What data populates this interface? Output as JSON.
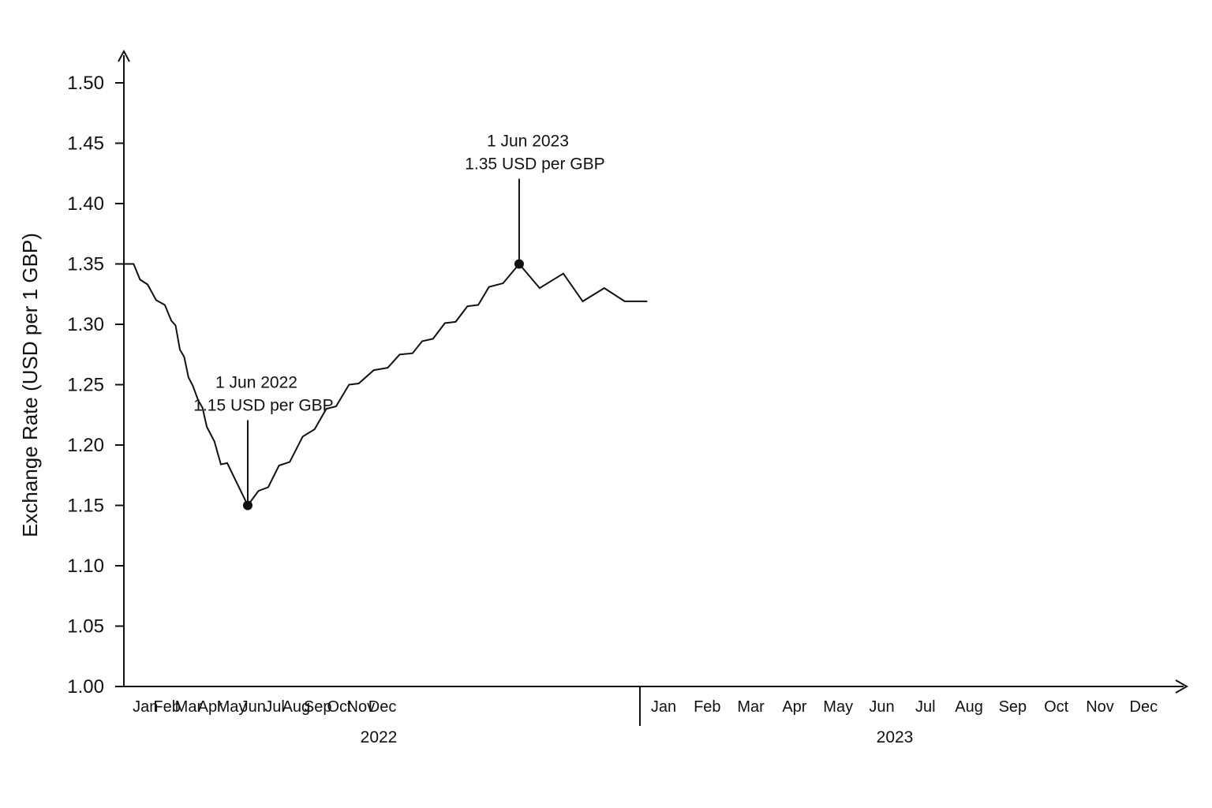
{
  "chart_data": {
    "type": "line",
    "title": "",
    "xlabel": "",
    "ylabel": "Exchange Rate (USD per 1 GBP)",
    "ylim": [
      1.0,
      1.5
    ],
    "yticks": [
      "1.00",
      "1.05",
      "1.10",
      "1.15",
      "1.20",
      "1.25",
      "1.30",
      "1.35",
      "1.40",
      "1.45",
      "1.50"
    ],
    "grid": false,
    "months": [
      "Jan",
      "Feb",
      "Mar",
      "Apr",
      "May",
      "Jun",
      "Jul",
      "Aug",
      "Sep",
      "Oct",
      "Nov",
      "Dec"
    ],
    "years": [
      "2022",
      "2023"
    ],
    "series": [
      {
        "values": [
          [
            0.0,
            1.35
          ],
          [
            0.45,
            1.35
          ],
          [
            0.75,
            1.337
          ],
          [
            1.1,
            1.333
          ],
          [
            1.5,
            1.32
          ],
          [
            1.9,
            1.316
          ],
          [
            2.2,
            1.303
          ],
          [
            2.4,
            1.299
          ],
          [
            2.6,
            1.279
          ],
          [
            2.8,
            1.273
          ],
          [
            3.0,
            1.256
          ],
          [
            3.2,
            1.249
          ],
          [
            3.45,
            1.237
          ],
          [
            3.65,
            1.231
          ],
          [
            3.85,
            1.215
          ],
          [
            4.2,
            1.203
          ],
          [
            4.5,
            1.184
          ],
          [
            4.8,
            1.185
          ],
          [
            5.75,
            1.15
          ],
          [
            6.25,
            1.162
          ],
          [
            6.7,
            1.165
          ],
          [
            7.2,
            1.183
          ],
          [
            7.7,
            1.186
          ],
          [
            8.3,
            1.207
          ],
          [
            8.85,
            1.213
          ],
          [
            9.4,
            1.23
          ],
          [
            9.85,
            1.232
          ],
          [
            10.45,
            1.25
          ],
          [
            10.9,
            1.251
          ],
          [
            11.6,
            1.262
          ],
          [
            12.25,
            1.264
          ],
          [
            12.8,
            1.275
          ],
          [
            13.4,
            1.276
          ],
          [
            13.85,
            1.286
          ],
          [
            14.35,
            1.288
          ],
          [
            14.9,
            1.301
          ],
          [
            15.4,
            1.302
          ],
          [
            15.95,
            1.315
          ],
          [
            16.45,
            1.316
          ],
          [
            16.95,
            1.331
          ],
          [
            17.6,
            1.334
          ],
          [
            18.35,
            1.35
          ],
          [
            19.3,
            1.33
          ],
          [
            20.4,
            1.342
          ],
          [
            21.3,
            1.319
          ],
          [
            22.3,
            1.33
          ],
          [
            23.25,
            1.319
          ],
          [
            23.75,
            1.319
          ],
          [
            24.3,
            1.319
          ]
        ]
      }
    ],
    "annotations": [
      {
        "x": 5.75,
        "y": 1.15,
        "line1": "1 Jun 2022",
        "line2": "1.15 USD per GBP"
      },
      {
        "x": 18.35,
        "y": 1.35,
        "line1": "1 Jun 2023",
        "line2": "1.35 USD per GBP"
      }
    ]
  }
}
